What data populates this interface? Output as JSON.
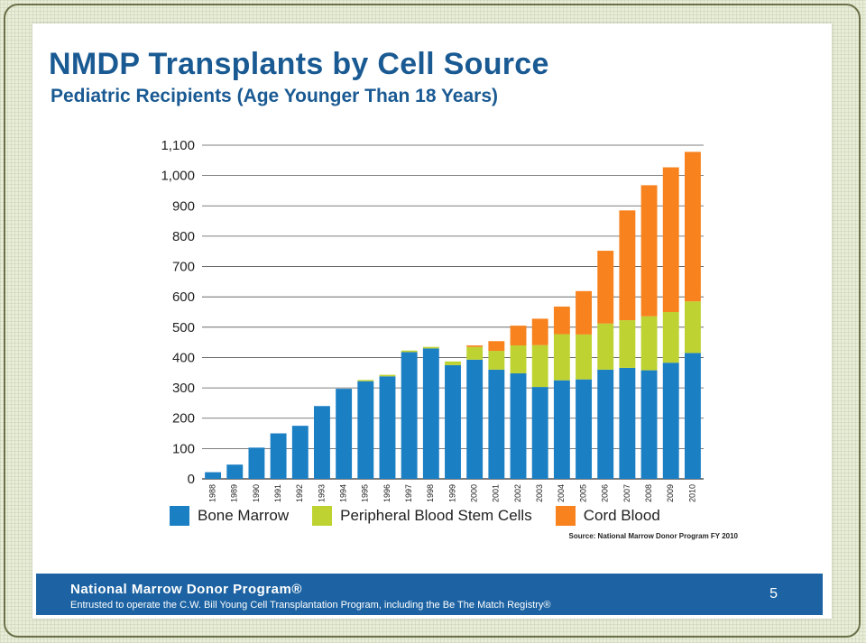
{
  "slide": {
    "title": "NMDP Transplants by Cell Source",
    "subtitle": "Pediatric Recipients (Age Younger Than 18 Years)",
    "source": "Source: National Marrow Donor Program FY 2010",
    "footer_title": "National Marrow Donor Program®",
    "footer_subtitle": "Entrusted to operate the C.W. Bill Young Cell Transplantation Program, including the Be The Match Registry®",
    "page_number": "5"
  },
  "chart_data": {
    "type": "bar",
    "stacked": true,
    "title": "NMDP Transplants by Cell Source",
    "subtitle": "Pediatric Recipients (Age Younger Than 18 Years)",
    "xlabel": "",
    "ylabel": "",
    "ylim": [
      0,
      1100
    ],
    "yticks": [
      0,
      100,
      200,
      300,
      400,
      500,
      600,
      700,
      800,
      900,
      1000,
      1100
    ],
    "ytick_labels": [
      "0",
      "100",
      "200",
      "300",
      "400",
      "500",
      "600",
      "700",
      "800",
      "900",
      "1,000",
      "1,100"
    ],
    "grid": true,
    "legend_position": "bottom",
    "categories": [
      "1988",
      "1989",
      "1990",
      "1991",
      "1992",
      "1993",
      "1994",
      "1995",
      "1996",
      "1997",
      "1998",
      "1999",
      "2000",
      "2001",
      "2002",
      "2003",
      "2004",
      "2005",
      "2006",
      "2007",
      "2008",
      "2009",
      "2010"
    ],
    "series": [
      {
        "name": "Bone Marrow",
        "color": "#1b7fc4",
        "values": [
          22,
          47,
          103,
          150,
          175,
          240,
          297,
          322,
          338,
          418,
          430,
          375,
          393,
          360,
          348,
          303,
          325,
          328,
          360,
          366,
          358,
          383,
          415
        ]
      },
      {
        "name": "Peripheral Blood Stem Cells",
        "color": "#bed331",
        "values": [
          0,
          0,
          0,
          0,
          0,
          0,
          0,
          4,
          5,
          5,
          5,
          12,
          42,
          62,
          92,
          138,
          152,
          148,
          152,
          157,
          178,
          167,
          170
        ]
      },
      {
        "name": "Cord Blood",
        "color": "#f7821e",
        "values": [
          0,
          0,
          0,
          0,
          0,
          0,
          0,
          0,
          0,
          0,
          0,
          0,
          5,
          32,
          65,
          87,
          91,
          143,
          240,
          362,
          432,
          477,
          493
        ]
      }
    ]
  }
}
